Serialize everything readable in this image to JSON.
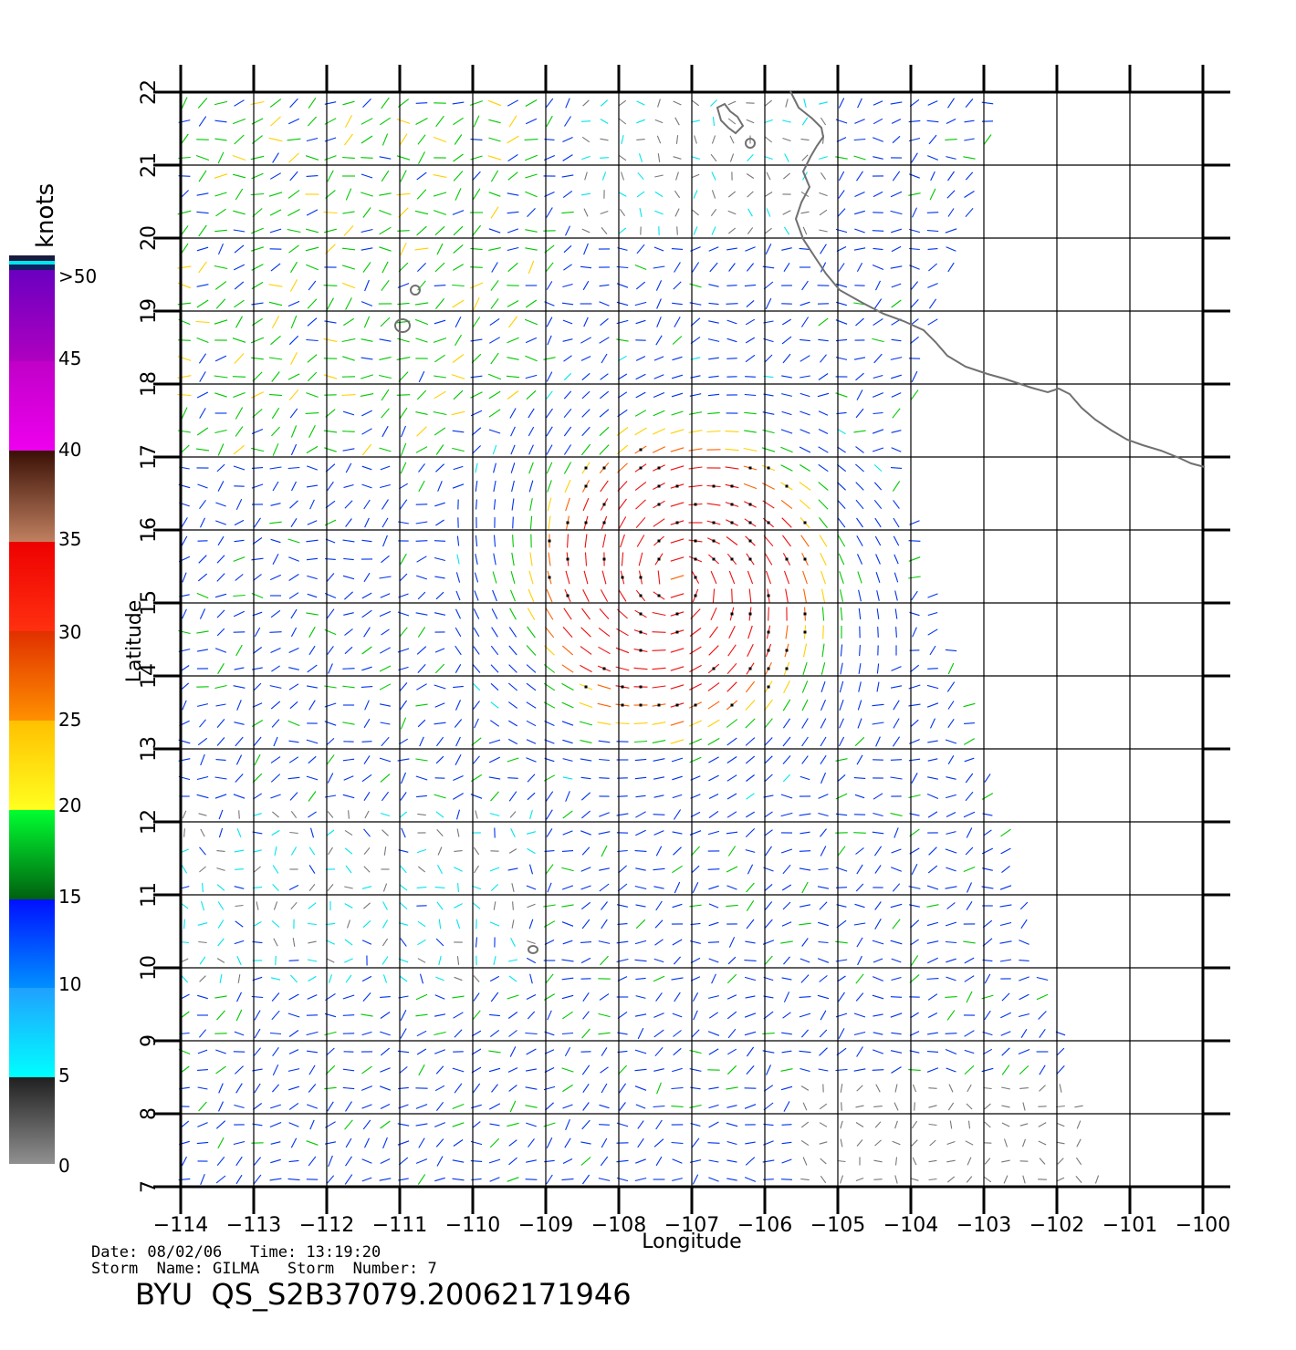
{
  "map": {
    "lon_ticks": [
      "−114",
      "−113",
      "−112",
      "−111",
      "−110",
      "−109",
      "−108",
      "−107",
      "−106",
      "−105",
      "−104",
      "−103",
      "−102",
      "−101",
      "−100"
    ],
    "lat_ticks": [
      "7",
      "8",
      "9",
      "10",
      "11",
      "12",
      "13",
      "14",
      "15",
      "16",
      "17",
      "18",
      "19",
      "20",
      "21",
      "22"
    ],
    "xlabel": "Longitude",
    "ylabel": "Latitude",
    "lon_range": [
      -114,
      -100
    ],
    "lat_range": [
      7,
      22
    ],
    "storm_center": {
      "lon": -107.2,
      "lat": 15.3
    }
  },
  "legend": {
    "unit": "knots",
    "labels": [
      ">50",
      "45",
      "40",
      "35",
      "30",
      "25",
      "20",
      "15",
      "10",
      "5",
      "0"
    ],
    "colors": {
      "calm": "#777777",
      "light": "#00e5ee",
      "moderate": "#0033ee",
      "fresh": "#00c800",
      "strong": "#ffd000",
      "gale": "#ff6000",
      "storm": "#ee1111",
      "violent": "#6a2a10",
      "extreme": "#ee00ee",
      "max": "#6a00c0",
      "coast": "#707070"
    }
  },
  "footer": {
    "date_line": "Date: 08/02/06   Time: 13:19:20",
    "storm_line": "Storm  Name: GILMA   Storm  Number: 7",
    "file_id": "BYU  QS_S2B37079.20062171946"
  }
}
